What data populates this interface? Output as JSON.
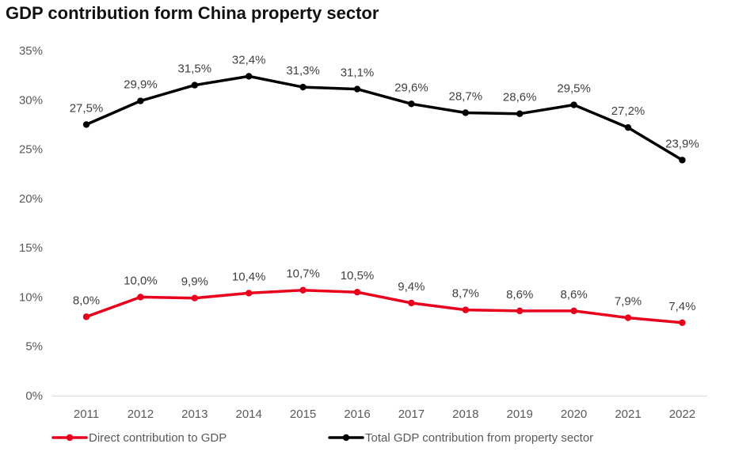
{
  "chart_data": {
    "type": "line",
    "title": "GDP contribution form China property sector",
    "xlabel": "",
    "ylabel": "",
    "ylim": [
      0,
      35
    ],
    "y_ticks": [
      "0%",
      "5%",
      "10%",
      "15%",
      "20%",
      "25%",
      "30%",
      "35%"
    ],
    "y_tick_values": [
      0,
      5,
      10,
      15,
      20,
      25,
      30,
      35
    ],
    "categories": [
      "2011",
      "2012",
      "2013",
      "2014",
      "2015",
      "2016",
      "2017",
      "2018",
      "2019",
      "2020",
      "2021",
      "2022"
    ],
    "grid": false,
    "legend_position": "bottom",
    "series": [
      {
        "name": "Direct contribution to GDP",
        "color": "#e8001c",
        "values": [
          8.0,
          10.0,
          9.9,
          10.4,
          10.7,
          10.5,
          9.4,
          8.7,
          8.6,
          8.6,
          7.9,
          7.4
        ],
        "labels": [
          "8,0%",
          "10,0%",
          "9,9%",
          "10,4%",
          "10,7%",
          "10,5%",
          "9,4%",
          "8,7%",
          "8,6%",
          "8,6%",
          "7,9%",
          "7,4%"
        ]
      },
      {
        "name": "Total GDP contribution from property sector",
        "color": "#000000",
        "values": [
          27.5,
          29.9,
          31.5,
          32.4,
          31.3,
          31.1,
          29.6,
          28.7,
          28.6,
          29.5,
          27.2,
          23.9
        ],
        "labels": [
          "27,5%",
          "29,9%",
          "31,5%",
          "32,4%",
          "31,3%",
          "31,1%",
          "29,6%",
          "28,7%",
          "28,6%",
          "29,5%",
          "27,2%",
          "23,9%"
        ]
      }
    ]
  }
}
